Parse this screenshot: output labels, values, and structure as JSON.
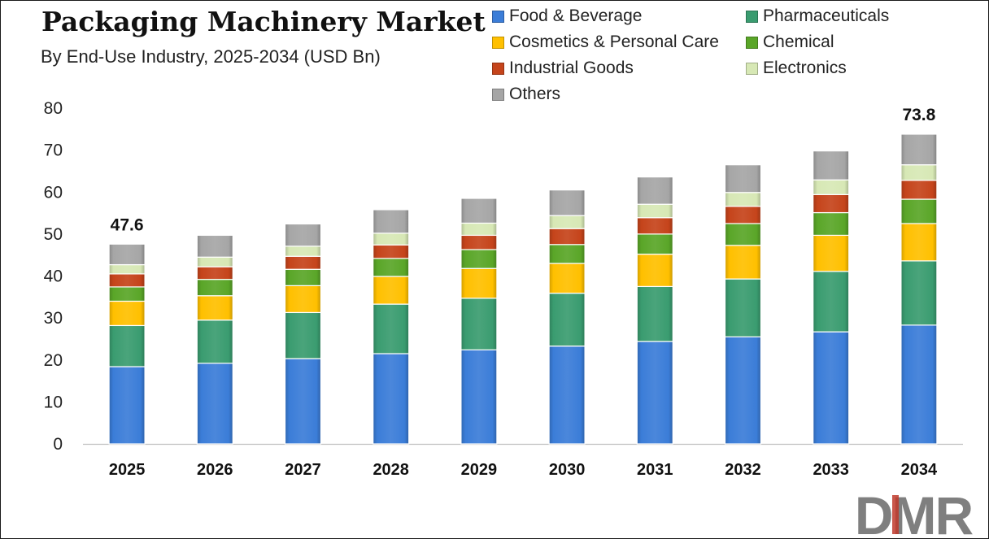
{
  "title": "Packaging Machinery Market",
  "subtitle": "By End-Use Industry, 2025-2034 (USD Bn)",
  "logo_text": "DMR",
  "chart_data": {
    "type": "bar",
    "stacked": true,
    "categories": [
      "2025",
      "2026",
      "2027",
      "2028",
      "2029",
      "2030",
      "2031",
      "2032",
      "2033",
      "2034"
    ],
    "ylim": [
      0,
      80
    ],
    "yticks": [
      0,
      10,
      20,
      30,
      40,
      50,
      60,
      70,
      80
    ],
    "grid": false,
    "legend_position": "top-right",
    "series": [
      {
        "name": "Food & Beverage",
        "color": "#3b7dd8",
        "values": [
          18.4,
          19.2,
          20.3,
          21.5,
          22.4,
          23.3,
          24.4,
          25.5,
          26.7,
          28.3
        ]
      },
      {
        "name": "Pharmaceuticals",
        "color": "#3a9c70",
        "values": [
          9.8,
          10.3,
          11.0,
          11.8,
          12.3,
          12.6,
          13.1,
          13.8,
          14.4,
          15.3
        ]
      },
      {
        "name": "Cosmetics & Personal Care",
        "color": "#ffc000",
        "values": [
          5.8,
          5.8,
          6.4,
          6.6,
          7.1,
          7.1,
          7.7,
          8.0,
          8.6,
          8.9
        ]
      },
      {
        "name": "Chemical",
        "color": "#5aa628",
        "values": [
          3.4,
          3.9,
          3.9,
          4.3,
          4.5,
          4.5,
          4.8,
          5.2,
          5.4,
          5.8
        ]
      },
      {
        "name": "Industrial Goods",
        "color": "#c5441b",
        "values": [
          3.1,
          3.0,
          3.1,
          3.2,
          3.4,
          3.8,
          3.9,
          4.1,
          4.3,
          4.5
        ]
      },
      {
        "name": "Electronics",
        "color": "#d7e8b5",
        "values": [
          2.2,
          2.3,
          2.4,
          2.8,
          2.9,
          3.1,
          3.2,
          3.3,
          3.5,
          3.7
        ]
      },
      {
        "name": "Others",
        "color": "#a6a6a6",
        "values": [
          4.9,
          5.2,
          5.3,
          5.6,
          5.9,
          6.1,
          6.5,
          6.6,
          6.9,
          7.3
        ]
      }
    ],
    "data_labels": [
      {
        "category": "2025",
        "text": "47.6"
      },
      {
        "category": "2034",
        "text": "73.8"
      }
    ]
  }
}
